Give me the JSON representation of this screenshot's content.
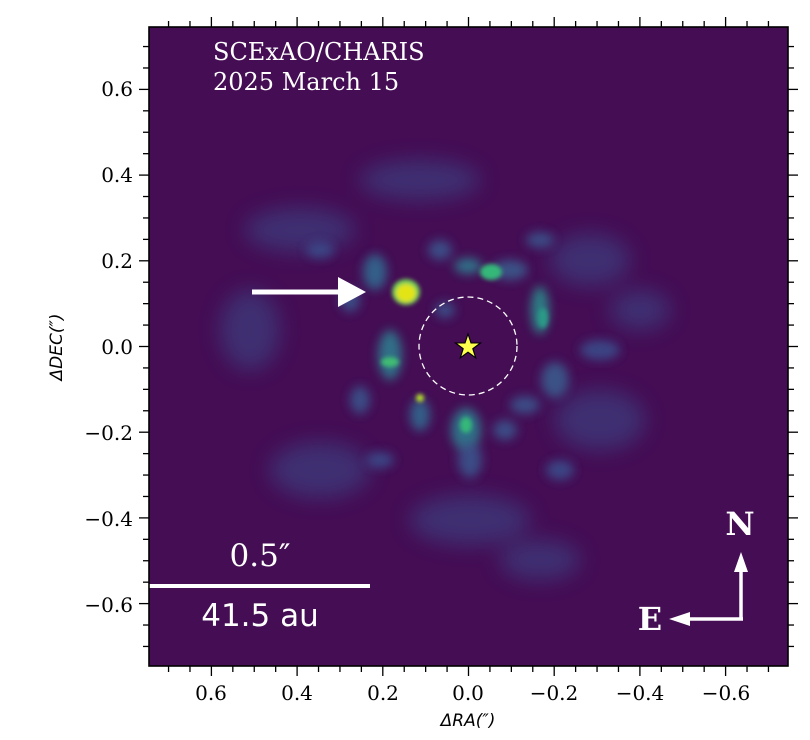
{
  "chart_data": {
    "type": "heatmap",
    "title": "",
    "xlabel": "ΔRA(″)",
    "ylabel": "ΔDEC(″)",
    "xlim": [
      0.745,
      -0.745
    ],
    "ylim": [
      -0.745,
      0.745
    ],
    "x_ticks": [
      "0.6",
      "0.4",
      "0.2",
      "0.0",
      "−0.2",
      "−0.4",
      "−0.6"
    ],
    "y_ticks": [
      "0.6",
      "0.4",
      "0.2",
      "0.0",
      "−0.2",
      "−0.4",
      "−0.6"
    ],
    "x_tick_values": [
      0.6,
      0.4,
      0.2,
      0.0,
      -0.2,
      -0.4,
      -0.6
    ],
    "y_tick_values": [
      0.6,
      0.4,
      0.2,
      0.0,
      -0.2,
      -0.4,
      -0.6
    ],
    "colormap": "viridis",
    "grid": false,
    "annotations": {
      "instrument": "SCExAO/CHARIS",
      "date": "2025 March 15",
      "scale_bar_angular": "0.5″",
      "scale_bar_physical": "41.5 au",
      "compass_north": "N",
      "compass_east": "E",
      "star_marker": {
        "x": 0.0,
        "y": 0.0,
        "symbol": "star",
        "color": "#ffff4d"
      },
      "inner_mask_radius_arcsec": 0.115,
      "companion_arrow_target": {
        "x": 0.15,
        "y": 0.13
      }
    },
    "features": [
      {
        "name": "companion",
        "x": 0.15,
        "y": 0.128,
        "intensity": 1.0
      },
      {
        "name": "blob-north",
        "x": -0.05,
        "y": 0.175,
        "intensity": 0.55
      },
      {
        "name": "blob-east",
        "x": 0.205,
        "y": -0.035,
        "intensity": 0.5
      },
      {
        "name": "blob-southeast",
        "x": 0.1,
        "y": -0.12,
        "intensity": 0.75
      },
      {
        "name": "blob-south",
        "x": 0.0,
        "y": -0.18,
        "intensity": 0.5
      },
      {
        "name": "blob-west",
        "x": -0.17,
        "y": 0.08,
        "intensity": 0.4
      }
    ]
  },
  "colors": {
    "background": "#440d54",
    "frame": "#000000",
    "annotation": "#ffffff",
    "star": "#ffff4d"
  }
}
